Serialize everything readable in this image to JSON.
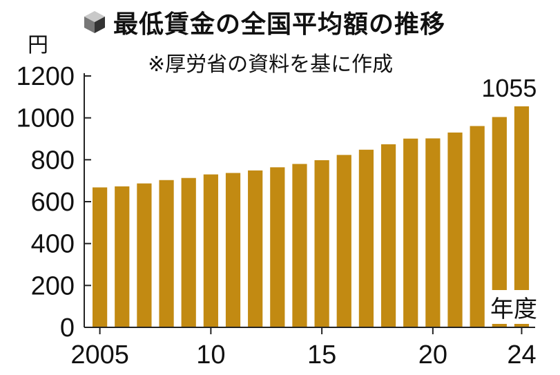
{
  "title": "最低賃金の全国平均額の推移",
  "subtitle": "※厚労省の資料を基に作成",
  "icon": "cube-icon",
  "colors": {
    "bar": "#c28a12",
    "axis": "#222222"
  },
  "chart_data": {
    "type": "bar",
    "title": "最低賃金の全国平均額の推移",
    "ylabel": "円",
    "xlabel": "年度",
    "categories": [
      "2005",
      "2006",
      "2007",
      "2008",
      "2009",
      "2010",
      "2011",
      "2012",
      "2013",
      "2014",
      "2015",
      "2016",
      "2017",
      "2018",
      "2019",
      "2020",
      "2021",
      "2022",
      "2023",
      "2024"
    ],
    "values": [
      668,
      673,
      687,
      703,
      713,
      730,
      737,
      749,
      764,
      780,
      798,
      823,
      848,
      874,
      901,
      902,
      930,
      961,
      1004,
      1055
    ],
    "ylim": [
      0,
      1200
    ],
    "y_ticks": [
      "0",
      "200",
      "400",
      "600",
      "800",
      "1000",
      "1200"
    ],
    "x_ticks": [
      {
        "index": 0,
        "label": "2005"
      },
      {
        "index": 5,
        "label": "10"
      },
      {
        "index": 10,
        "label": "15"
      },
      {
        "index": 15,
        "label": "20"
      },
      {
        "index": 19,
        "label": "24"
      }
    ],
    "data_labels": [
      {
        "index": 19,
        "label": "1055"
      }
    ],
    "grid": false,
    "legend": "none"
  }
}
